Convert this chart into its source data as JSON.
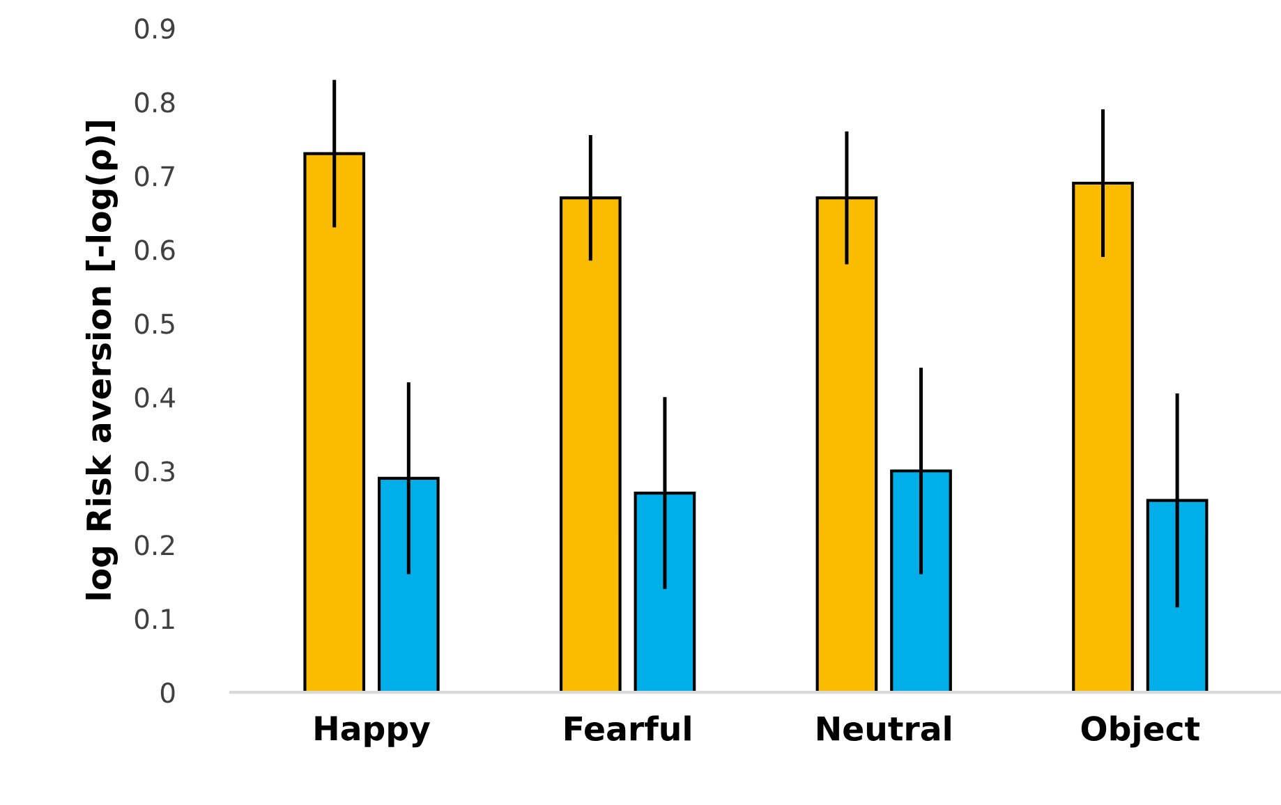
{
  "chart_data": {
    "type": "bar",
    "ylabel": "log Risk aversion [-log(ρ)]",
    "categories": [
      "Happy",
      "Fearful",
      "Neutral",
      "Object"
    ],
    "series": [
      {
        "color": "#fbbc00",
        "values": [
          0.73,
          0.67,
          0.67,
          0.69
        ],
        "errors": [
          0.1,
          0.085,
          0.09,
          0.1
        ]
      },
      {
        "color": "#00aee8",
        "values": [
          0.29,
          0.27,
          0.3,
          0.26
        ],
        "errors": [
          0.13,
          0.13,
          0.14,
          0.145
        ]
      }
    ],
    "ylim": [
      0,
      0.9
    ],
    "yticks": [
      0,
      0.1,
      0.2,
      0.3,
      0.4,
      0.5,
      0.6,
      0.7,
      0.8,
      0.9
    ],
    "grid": false,
    "legend": false
  }
}
